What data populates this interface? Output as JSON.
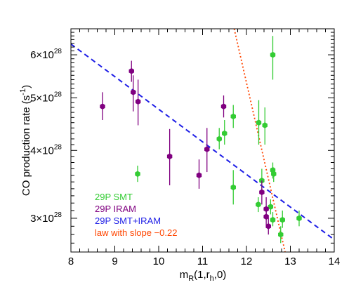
{
  "chart_data": {
    "type": "scatter",
    "xlabel_main": "m",
    "xlabel_sub": "R",
    "xlabel_rest": "(1,r",
    "xlabel_sub2": "h",
    "xlabel_end": ",0)",
    "ylabel_main": "CO production rate (s",
    "ylabel_sup": "-1",
    "ylabel_end": ")",
    "xlim": [
      8,
      14
    ],
    "ylim": [
      2.6e+28,
      6.7e+28
    ],
    "y_log_scale": true,
    "x_ticks": [
      {
        "value": 8,
        "label": "8"
      },
      {
        "value": 9,
        "label": "9"
      },
      {
        "value": 10,
        "label": "10"
      },
      {
        "value": 11,
        "label": "11"
      },
      {
        "value": 12,
        "label": "12"
      },
      {
        "value": 13,
        "label": "13"
      },
      {
        "value": 14,
        "label": "14"
      }
    ],
    "y_ticks": [
      {
        "value": 3e+28,
        "mantissa": "3",
        "base": "×10",
        "exp": "28"
      },
      {
        "value": 4e+28,
        "mantissa": "4",
        "base": "×10",
        "exp": "28"
      },
      {
        "value": 5e+28,
        "mantissa": "5",
        "base": "×10",
        "exp": "28"
      },
      {
        "value": 6e+28,
        "mantissa": "6",
        "base": "×10",
        "exp": "28"
      }
    ],
    "series": [
      {
        "name": "29P SMT",
        "color": "#33cc33",
        "points": [
          {
            "x": 9.52,
            "y": 3.62e+28,
            "lo": 3.5e+28,
            "hi": 3.75e+28
          },
          {
            "x": 11.38,
            "y": 4.2e+28,
            "lo": 4.02e+28,
            "hi": 4.4e+28
          },
          {
            "x": 11.5,
            "y": 4.3e+28,
            "lo": 4.1e+28,
            "hi": 4.55e+28
          },
          {
            "x": 11.7,
            "y": 4.62e+28,
            "lo": 4.4e+28,
            "hi": 4.85e+28
          },
          {
            "x": 11.7,
            "y": 3.42e+28,
            "lo": 3.18e+28,
            "hi": 3.68e+28
          },
          {
            "x": 12.27,
            "y": 3.18e+28,
            "lo": 3.08e+28,
            "hi": 3.28e+28
          },
          {
            "x": 12.28,
            "y": 4.5e+28,
            "lo": 4.1e+28,
            "hi": 4.95e+28
          },
          {
            "x": 12.35,
            "y": 3.52e+28,
            "lo": 3.35e+28,
            "hi": 3.7e+28
          },
          {
            "x": 12.42,
            "y": 4.45e+28,
            "lo": 4.1e+28,
            "hi": 4.8e+28
          },
          {
            "x": 12.55,
            "y": 3.15e+28,
            "lo": 3.05e+28,
            "hi": 3.25e+28
          },
          {
            "x": 12.6,
            "y": 6e+28,
            "lo": 5.4e+28,
            "hi": 6.5e+28
          },
          {
            "x": 12.6,
            "y": 3.68e+28,
            "lo": 3.55e+28,
            "hi": 3.8e+28
          },
          {
            "x": 12.62,
            "y": 3.62e+28,
            "lo": 3.5e+28,
            "hi": 3.72e+28
          },
          {
            "x": 12.6,
            "y": 2.98e+28,
            "lo": 2.9e+28,
            "hi": 3.08e+28
          },
          {
            "x": 12.82,
            "y": 2.98e+28,
            "lo": 2.88e+28,
            "hi": 3.1e+28
          },
          {
            "x": 12.78,
            "y": 2.8e+28,
            "lo": 2.7e+28,
            "hi": 2.9e+28
          },
          {
            "x": 13.2,
            "y": 3e+28,
            "lo": 2.9e+28,
            "hi": 3.1e+28
          }
        ]
      },
      {
        "name": "29P IRAM",
        "color": "#800080",
        "points": [
          {
            "x": 8.72,
            "y": 4.82e+28,
            "lo": 4.55e+28,
            "hi": 5.12e+28
          },
          {
            "x": 9.38,
            "y": 5.6e+28,
            "lo": 5.35e+28,
            "hi": 5.85e+28
          },
          {
            "x": 9.42,
            "y": 5.12e+28,
            "lo": 4.72e+28,
            "hi": 5.5e+28
          },
          {
            "x": 9.53,
            "y": 4.92e+28,
            "lo": 4.45e+28,
            "hi": 5.4e+28
          },
          {
            "x": 10.25,
            "y": 3.9e+28,
            "lo": 3.45e+28,
            "hi": 4.38e+28
          },
          {
            "x": 10.92,
            "y": 3.6e+28,
            "lo": 3.4e+28,
            "hi": 3.85e+28
          },
          {
            "x": 11.1,
            "y": 4.02e+28,
            "lo": 3.65e+28,
            "hi": 4.4e+28
          },
          {
            "x": 11.48,
            "y": 4.82e+28,
            "lo": 4.6e+28,
            "hi": 5.05e+28
          },
          {
            "x": 12.35,
            "y": 3.35e+28,
            "lo": 3.18e+28,
            "hi": 3.52e+28
          },
          {
            "x": 12.45,
            "y": 3.12e+28,
            "lo": 2.98e+28,
            "hi": 3.28e+28
          },
          {
            "x": 12.45,
            "y": 3.02e+28,
            "lo": 2.88e+28,
            "hi": 3.15e+28
          },
          {
            "x": 12.5,
            "y": 2.9e+28,
            "lo": 2.8e+28,
            "hi": 3e+28
          }
        ]
      }
    ],
    "fit_lines": [
      {
        "name": "29P SMT+IRAM",
        "color": "#1e1ee6",
        "style": "dashed",
        "x0": 8,
        "y0": 6.28e+28,
        "x1": 14,
        "y1": 2.74e+28
      },
      {
        "name": "law with slope −0.22",
        "color": "#ff4500",
        "style": "dotted",
        "x0": 11.72,
        "y0": 6.7e+28,
        "x1": 12.88,
        "y1": 2.6e+28
      }
    ],
    "legend_position": "bottom-left",
    "grid": false
  }
}
